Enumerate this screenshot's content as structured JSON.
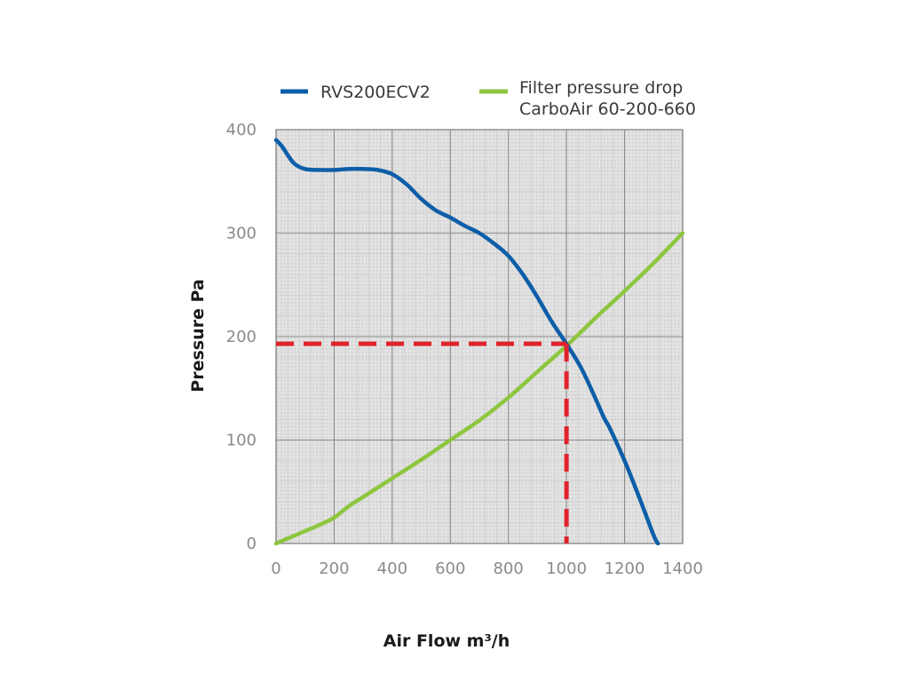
{
  "chart_data": {
    "type": "line",
    "xlabel": "Air Flow m³/h",
    "ylabel": "Pressure Pa",
    "xlim": [
      0,
      1400
    ],
    "ylim": [
      0,
      400
    ],
    "x_ticks": [
      0,
      200,
      400,
      600,
      800,
      1000,
      1200,
      1400
    ],
    "y_ticks": [
      0,
      100,
      200,
      300,
      400
    ],
    "grid": true,
    "legend_position": "top",
    "series": [
      {
        "name": "RVS200ECV2",
        "color": "#0d5ea8",
        "x": [
          0,
          20,
          60,
          100,
          150,
          200,
          250,
          300,
          350,
          400,
          450,
          500,
          550,
          600,
          650,
          700,
          750,
          800,
          850,
          900,
          950,
          1000,
          1050,
          1100,
          1130,
          1150,
          1200,
          1250,
          1300,
          1315
        ],
        "y": [
          390,
          384,
          368,
          362,
          361,
          361,
          362,
          362,
          361,
          357,
          347,
          333,
          322,
          315,
          307,
          300,
          290,
          278,
          260,
          238,
          214,
          193,
          170,
          140,
          121,
          111,
          80,
          45,
          8,
          0
        ]
      },
      {
        "name": "Filter pressure drop",
        "name_line2": "CarboAir 60-200-660",
        "color": "#8dc63f",
        "x": [
          0,
          50,
          100,
          150,
          200,
          250,
          300,
          400,
          500,
          600,
          700,
          800,
          900,
          1000,
          1100,
          1200,
          1300,
          1400
        ],
        "y": [
          0,
          6,
          12,
          18,
          25,
          36,
          45,
          63,
          81,
          100,
          119,
          141,
          166,
          191,
          218,
          244,
          271,
          300
        ]
      }
    ],
    "annotation": {
      "type": "operating-point",
      "color": "#e0232b",
      "x": 1000,
      "y": 193
    }
  }
}
